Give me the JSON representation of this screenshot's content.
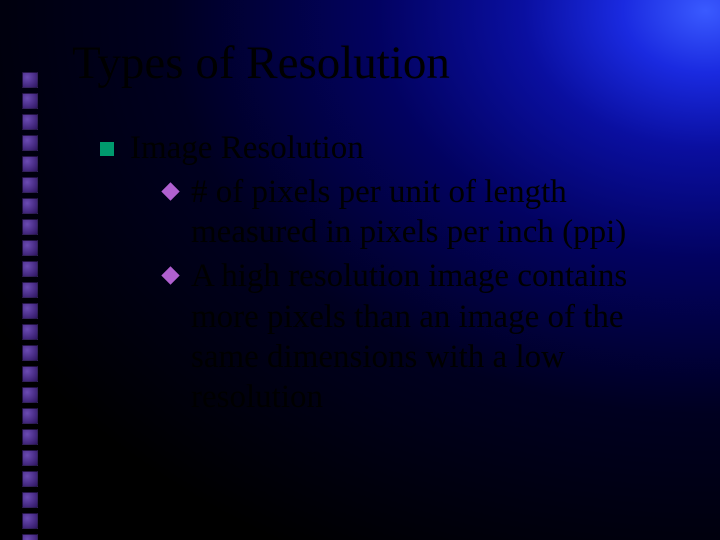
{
  "slide": {
    "title": "Types of Resolution",
    "bullets": [
      {
        "text": "Image Resolution",
        "sub": [
          {
            "text": "# of pixels per unit of length measured in pixels per inch (ppi)"
          },
          {
            "text": "A high resolution image contains more pixels than an image of the same dimensions with a low resolution"
          }
        ]
      }
    ],
    "style": {
      "bullet_lvl1_color": "#009a6e",
      "bullet_lvl2_color": "#b060d0",
      "title_fontsize": 47,
      "body_fontsize": 33,
      "side_square_count": 23
    }
  }
}
